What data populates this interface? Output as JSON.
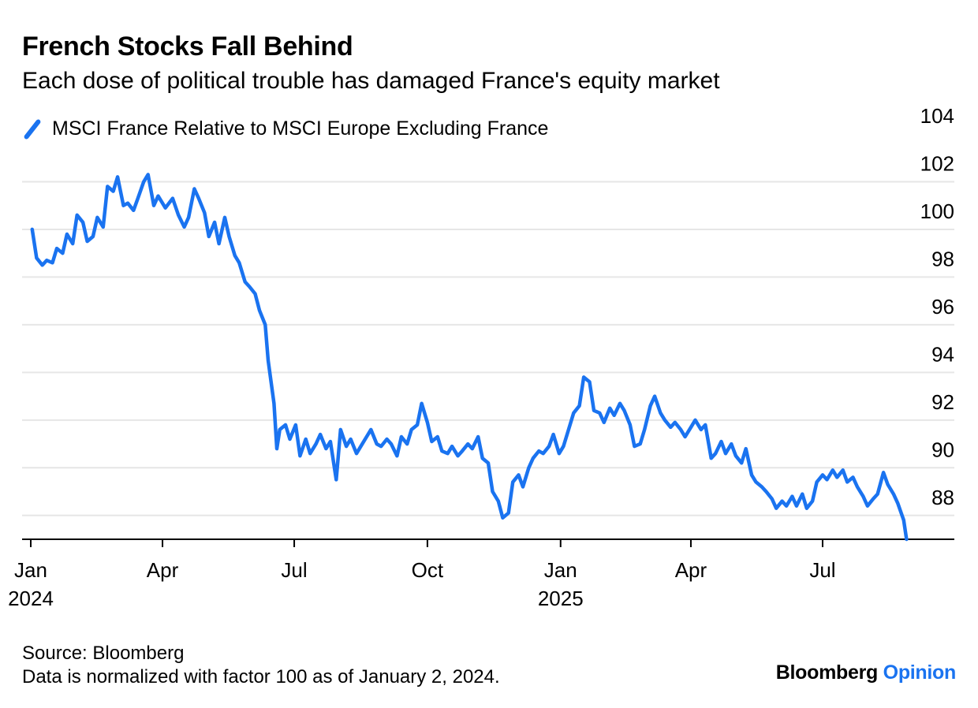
{
  "header": {
    "title": "French Stocks Fall Behind",
    "subtitle": "Each dose of political trouble has damaged France's equity market"
  },
  "footer": {
    "source": "Source: Bloomberg",
    "note": "Data is normalized with factor 100 as of January 2, 2024."
  },
  "brand": {
    "name": "Bloomberg",
    "suffix": "Opinion"
  },
  "colors": {
    "series": "#1a73f0",
    "grid": "#e6e6e6",
    "axis": "#000000",
    "brand_accent": "#1a73f0"
  },
  "chart_data": {
    "type": "line",
    "title": "French Stocks Fall Behind",
    "subtitle": "Each dose of political trouble has damaged France's equity market",
    "xlabel": "",
    "ylabel": "",
    "ylim": [
      87,
      104
    ],
    "yticks": [
      88,
      90,
      92,
      94,
      96,
      98,
      100,
      102,
      104
    ],
    "y_axis_side": "right",
    "grid": true,
    "legend": "top-left",
    "xlim": [
      "2023-12-26",
      "2025-09-30"
    ],
    "xticks": [
      {
        "date": "2024-01-01",
        "label": "Jan",
        "year": "2024"
      },
      {
        "date": "2024-04-01",
        "label": "Apr",
        "year": ""
      },
      {
        "date": "2024-07-01",
        "label": "Jul",
        "year": ""
      },
      {
        "date": "2024-10-01",
        "label": "Oct",
        "year": ""
      },
      {
        "date": "2025-01-01",
        "label": "Jan",
        "year": "2025"
      },
      {
        "date": "2025-04-01",
        "label": "Apr",
        "year": ""
      },
      {
        "date": "2025-07-01",
        "label": "Jul",
        "year": ""
      }
    ],
    "series": [
      {
        "name": "MSCI France Relative to MSCI Europe Excluding France",
        "points": [
          [
            "2024-01-02",
            100.0
          ],
          [
            "2024-01-05",
            98.8
          ],
          [
            "2024-01-09",
            98.5
          ],
          [
            "2024-01-12",
            98.7
          ],
          [
            "2024-01-16",
            98.6
          ],
          [
            "2024-01-19",
            99.2
          ],
          [
            "2024-01-23",
            99.0
          ],
          [
            "2024-01-26",
            99.8
          ],
          [
            "2024-01-30",
            99.4
          ],
          [
            "2024-02-02",
            100.6
          ],
          [
            "2024-02-06",
            100.3
          ],
          [
            "2024-02-09",
            99.5
          ],
          [
            "2024-02-13",
            99.7
          ],
          [
            "2024-02-16",
            100.5
          ],
          [
            "2024-02-20",
            100.1
          ],
          [
            "2024-02-23",
            101.8
          ],
          [
            "2024-02-27",
            101.6
          ],
          [
            "2024-03-01",
            102.2
          ],
          [
            "2024-03-05",
            101.0
          ],
          [
            "2024-03-08",
            101.1
          ],
          [
            "2024-03-12",
            100.8
          ],
          [
            "2024-03-15",
            101.3
          ],
          [
            "2024-03-19",
            102.0
          ],
          [
            "2024-03-22",
            102.3
          ],
          [
            "2024-03-26",
            101.0
          ],
          [
            "2024-03-29",
            101.4
          ],
          [
            "2024-04-03",
            100.9
          ],
          [
            "2024-04-08",
            101.3
          ],
          [
            "2024-04-12",
            100.6
          ],
          [
            "2024-04-16",
            100.1
          ],
          [
            "2024-04-19",
            100.5
          ],
          [
            "2024-04-23",
            101.7
          ],
          [
            "2024-04-26",
            101.3
          ],
          [
            "2024-04-30",
            100.7
          ],
          [
            "2024-05-03",
            99.7
          ],
          [
            "2024-05-07",
            100.3
          ],
          [
            "2024-05-10",
            99.4
          ],
          [
            "2024-05-14",
            100.5
          ],
          [
            "2024-05-17",
            99.7
          ],
          [
            "2024-05-21",
            98.9
          ],
          [
            "2024-05-24",
            98.6
          ],
          [
            "2024-05-28",
            97.8
          ],
          [
            "2024-05-31",
            97.6
          ],
          [
            "2024-06-04",
            97.3
          ],
          [
            "2024-06-07",
            96.6
          ],
          [
            "2024-06-11",
            96.0
          ],
          [
            "2024-06-13",
            94.5
          ],
          [
            "2024-06-17",
            92.7
          ],
          [
            "2024-06-19",
            90.8
          ],
          [
            "2024-06-21",
            91.6
          ],
          [
            "2024-06-25",
            91.8
          ],
          [
            "2024-06-28",
            91.2
          ],
          [
            "2024-07-02",
            91.8
          ],
          [
            "2024-07-05",
            90.5
          ],
          [
            "2024-07-09",
            91.2
          ],
          [
            "2024-07-12",
            90.6
          ],
          [
            "2024-07-16",
            91.0
          ],
          [
            "2024-07-19",
            91.4
          ],
          [
            "2024-07-23",
            90.8
          ],
          [
            "2024-07-26",
            91.1
          ],
          [
            "2024-07-30",
            89.5
          ],
          [
            "2024-08-02",
            91.6
          ],
          [
            "2024-08-06",
            90.9
          ],
          [
            "2024-08-09",
            91.2
          ],
          [
            "2024-08-13",
            90.6
          ],
          [
            "2024-08-16",
            90.9
          ],
          [
            "2024-08-20",
            91.3
          ],
          [
            "2024-08-23",
            91.6
          ],
          [
            "2024-08-27",
            91.0
          ],
          [
            "2024-08-30",
            90.9
          ],
          [
            "2024-09-03",
            91.2
          ],
          [
            "2024-09-06",
            91.0
          ],
          [
            "2024-09-10",
            90.5
          ],
          [
            "2024-09-13",
            91.3
          ],
          [
            "2024-09-17",
            91.0
          ],
          [
            "2024-09-20",
            91.6
          ],
          [
            "2024-09-24",
            91.8
          ],
          [
            "2024-09-27",
            92.7
          ],
          [
            "2024-10-01",
            91.9
          ],
          [
            "2024-10-04",
            91.1
          ],
          [
            "2024-10-08",
            91.3
          ],
          [
            "2024-10-11",
            90.7
          ],
          [
            "2024-10-15",
            90.6
          ],
          [
            "2024-10-18",
            90.9
          ],
          [
            "2024-10-22",
            90.5
          ],
          [
            "2024-10-25",
            90.7
          ],
          [
            "2024-10-29",
            91.0
          ],
          [
            "2024-11-01",
            90.8
          ],
          [
            "2024-11-05",
            91.3
          ],
          [
            "2024-11-08",
            90.4
          ],
          [
            "2024-11-12",
            90.2
          ],
          [
            "2024-11-15",
            89.0
          ],
          [
            "2024-11-19",
            88.6
          ],
          [
            "2024-11-22",
            87.9
          ],
          [
            "2024-11-26",
            88.1
          ],
          [
            "2024-11-29",
            89.4
          ],
          [
            "2024-12-03",
            89.7
          ],
          [
            "2024-12-06",
            89.2
          ],
          [
            "2024-12-10",
            90.0
          ],
          [
            "2024-12-13",
            90.4
          ],
          [
            "2024-12-17",
            90.7
          ],
          [
            "2024-12-20",
            90.6
          ],
          [
            "2024-12-24",
            90.9
          ],
          [
            "2024-12-27",
            91.4
          ],
          [
            "2024-12-31",
            90.6
          ],
          [
            "2025-01-03",
            90.9
          ],
          [
            "2025-01-07",
            91.7
          ],
          [
            "2025-01-10",
            92.3
          ],
          [
            "2025-01-14",
            92.6
          ],
          [
            "2025-01-17",
            93.8
          ],
          [
            "2025-01-21",
            93.6
          ],
          [
            "2025-01-24",
            92.4
          ],
          [
            "2025-01-28",
            92.3
          ],
          [
            "2025-01-31",
            91.9
          ],
          [
            "2025-02-04",
            92.5
          ],
          [
            "2025-02-07",
            92.2
          ],
          [
            "2025-02-11",
            92.7
          ],
          [
            "2025-02-14",
            92.4
          ],
          [
            "2025-02-18",
            91.8
          ],
          [
            "2025-02-21",
            90.9
          ],
          [
            "2025-02-25",
            91.0
          ],
          [
            "2025-02-28",
            91.6
          ],
          [
            "2025-03-04",
            92.6
          ],
          [
            "2025-03-07",
            93.0
          ],
          [
            "2025-03-11",
            92.3
          ],
          [
            "2025-03-14",
            92.0
          ],
          [
            "2025-03-18",
            91.7
          ],
          [
            "2025-03-21",
            91.9
          ],
          [
            "2025-03-25",
            91.6
          ],
          [
            "2025-03-28",
            91.3
          ],
          [
            "2025-04-01",
            91.7
          ],
          [
            "2025-04-04",
            92.0
          ],
          [
            "2025-04-08",
            91.6
          ],
          [
            "2025-04-11",
            91.8
          ],
          [
            "2025-04-15",
            90.4
          ],
          [
            "2025-04-18",
            90.6
          ],
          [
            "2025-04-22",
            91.1
          ],
          [
            "2025-04-25",
            90.6
          ],
          [
            "2025-04-29",
            91.0
          ],
          [
            "2025-05-02",
            90.5
          ],
          [
            "2025-05-06",
            90.2
          ],
          [
            "2025-05-09",
            90.8
          ],
          [
            "2025-05-13",
            89.7
          ],
          [
            "2025-05-16",
            89.4
          ],
          [
            "2025-05-20",
            89.2
          ],
          [
            "2025-05-23",
            89.0
          ],
          [
            "2025-05-27",
            88.7
          ],
          [
            "2025-05-30",
            88.3
          ],
          [
            "2025-06-03",
            88.6
          ],
          [
            "2025-06-06",
            88.4
          ],
          [
            "2025-06-10",
            88.8
          ],
          [
            "2025-06-13",
            88.4
          ],
          [
            "2025-06-17",
            88.9
          ],
          [
            "2025-06-20",
            88.3
          ],
          [
            "2025-06-24",
            88.6
          ],
          [
            "2025-06-27",
            89.4
          ],
          [
            "2025-07-01",
            89.7
          ],
          [
            "2025-07-04",
            89.5
          ],
          [
            "2025-07-08",
            89.9
          ],
          [
            "2025-07-11",
            89.6
          ],
          [
            "2025-07-15",
            89.9
          ],
          [
            "2025-07-18",
            89.4
          ],
          [
            "2025-07-22",
            89.6
          ],
          [
            "2025-07-25",
            89.2
          ],
          [
            "2025-07-29",
            88.8
          ],
          [
            "2025-08-01",
            88.4
          ],
          [
            "2025-08-05",
            88.7
          ],
          [
            "2025-08-08",
            88.9
          ],
          [
            "2025-08-12",
            89.8
          ],
          [
            "2025-08-15",
            89.3
          ],
          [
            "2025-08-19",
            88.9
          ],
          [
            "2025-08-22",
            88.5
          ],
          [
            "2025-08-26",
            87.8
          ],
          [
            "2025-08-28",
            87.0
          ]
        ]
      }
    ]
  }
}
